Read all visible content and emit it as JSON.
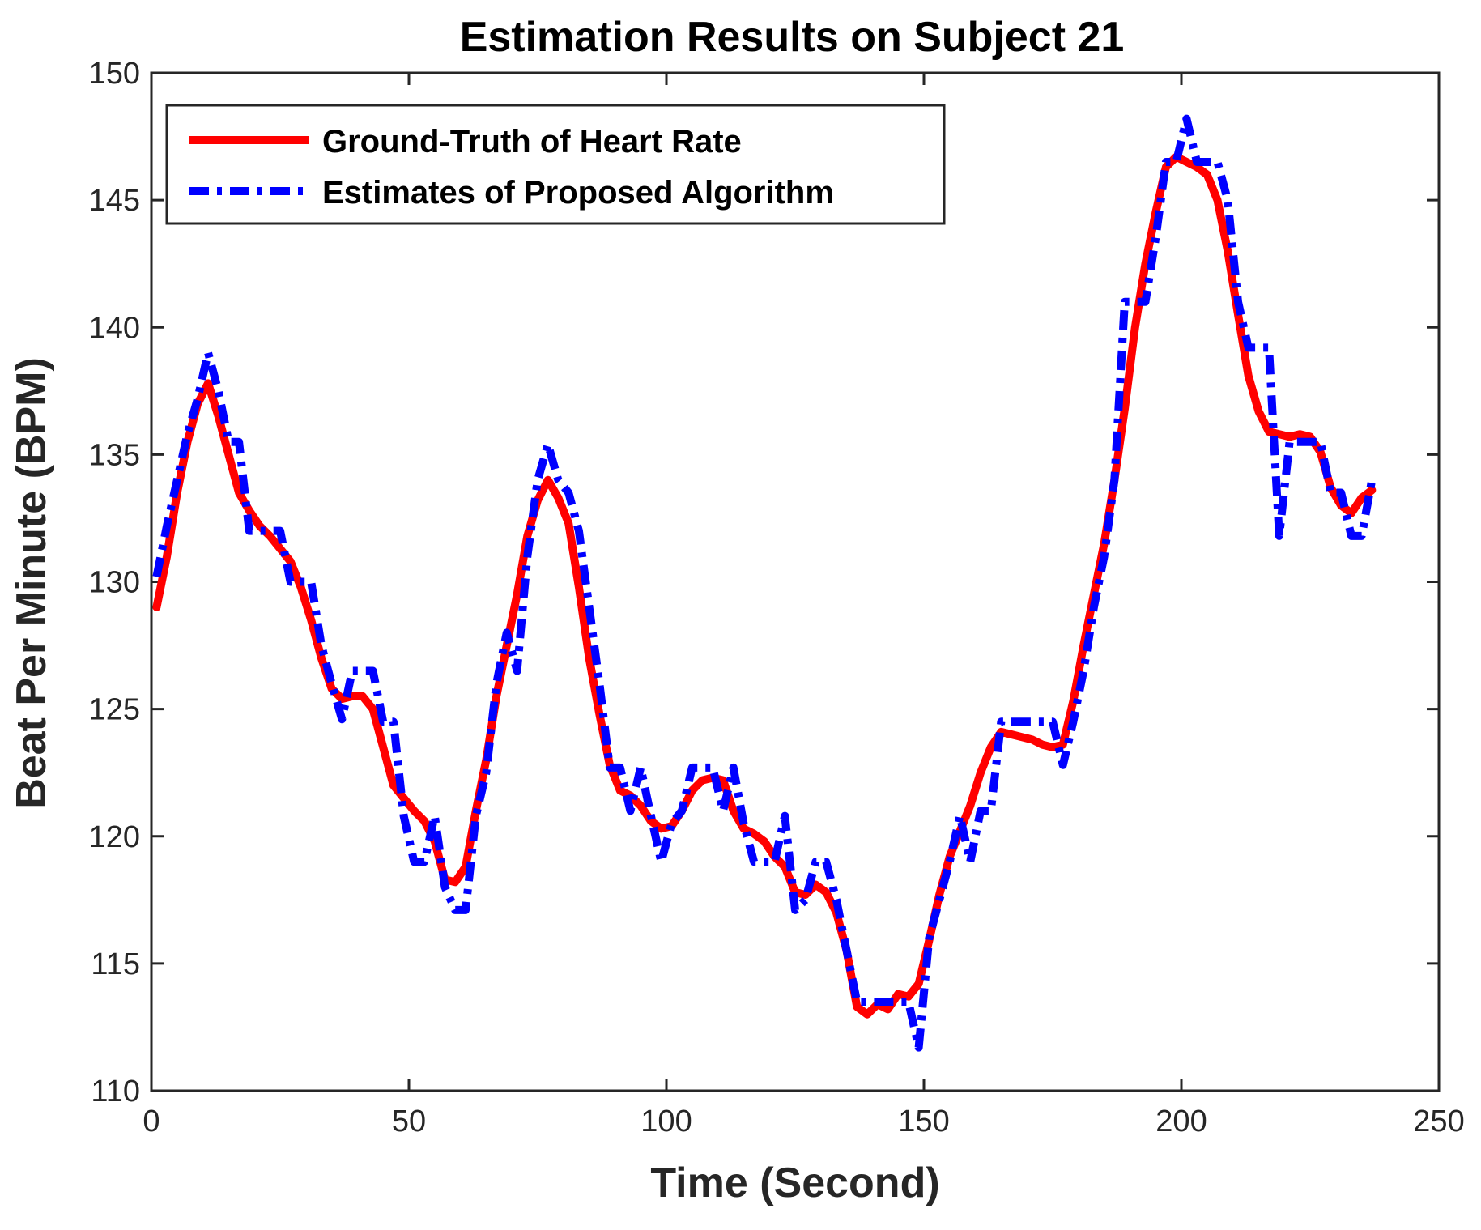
{
  "chart_data": {
    "type": "line",
    "title": "Estimation Results on Subject 21",
    "xlabel": "Time (Second)",
    "ylabel": "Beat Per Minute (BPM)",
    "xlim": [
      0,
      250
    ],
    "ylim": [
      110,
      150
    ],
    "xticks": [
      0,
      50,
      100,
      150,
      200,
      250
    ],
    "yticks": [
      110,
      115,
      120,
      125,
      130,
      135,
      140,
      145,
      150
    ],
    "grid": false,
    "legend_position": "top-left",
    "series": [
      {
        "name": "Ground-Truth of Heart Rate",
        "color": "#ff0000",
        "style": "solid",
        "x": [
          1,
          3,
          5,
          7,
          9,
          11,
          13,
          15,
          17,
          19,
          21,
          23,
          25,
          27,
          29,
          31,
          33,
          35,
          37,
          39,
          41,
          43,
          45,
          47,
          49,
          51,
          53,
          55,
          57,
          59,
          61,
          63,
          65,
          67,
          69,
          71,
          73,
          75,
          77,
          79,
          81,
          83,
          85,
          87,
          89,
          91,
          93,
          95,
          97,
          99,
          101,
          103,
          105,
          107,
          109,
          111,
          113,
          115,
          117,
          119,
          121,
          123,
          125,
          127,
          129,
          131,
          133,
          135,
          137,
          139,
          141,
          143,
          145,
          147,
          149,
          151,
          153,
          155,
          157,
          159,
          161,
          163,
          165,
          167,
          169,
          171,
          173,
          175,
          177,
          179,
          181,
          183,
          185,
          187,
          189,
          191,
          193,
          195,
          197,
          199,
          201,
          203,
          205,
          207,
          209,
          211,
          213,
          215,
          217,
          219,
          221,
          223,
          225,
          227,
          229,
          231,
          233,
          235,
          237
        ],
        "y": [
          129.0,
          131.0,
          133.5,
          135.5,
          137.0,
          137.8,
          136.5,
          135.0,
          133.5,
          132.8,
          132.2,
          131.8,
          131.3,
          130.8,
          129.8,
          128.5,
          127.0,
          125.8,
          125.4,
          125.5,
          125.5,
          125.0,
          123.5,
          122.0,
          121.5,
          121.0,
          120.6,
          119.8,
          118.3,
          118.2,
          118.8,
          121.0,
          123.0,
          125.5,
          127.5,
          129.5,
          131.8,
          133.2,
          134.0,
          133.3,
          132.3,
          129.8,
          127.0,
          124.8,
          122.8,
          121.8,
          121.6,
          121.2,
          120.6,
          120.3,
          120.4,
          121.0,
          121.8,
          122.2,
          122.3,
          122.2,
          121.0,
          120.3,
          120.1,
          119.8,
          119.2,
          118.8,
          117.8,
          117.7,
          118.1,
          117.8,
          117.0,
          115.5,
          113.3,
          113.0,
          113.4,
          113.2,
          113.8,
          113.7,
          114.2,
          115.9,
          117.7,
          119.2,
          120.2,
          121.2,
          122.5,
          123.5,
          124.1,
          124.0,
          123.9,
          123.8,
          123.6,
          123.5,
          123.6,
          125.3,
          127.5,
          129.5,
          131.5,
          134.0,
          136.8,
          140.0,
          142.5,
          144.5,
          146.3,
          146.7,
          146.5,
          146.3,
          146.0,
          145.0,
          143.0,
          140.5,
          138.1,
          136.7,
          135.9,
          135.8,
          135.7,
          135.8,
          135.7,
          135.1,
          133.7,
          133.0,
          132.7,
          133.3,
          133.6
        ]
      },
      {
        "name": "Estimates of Proposed Algorithm",
        "color": "#0000ff",
        "style": "dash-dot",
        "x": [
          1,
          3,
          5,
          7,
          9,
          11,
          13,
          15,
          17,
          19,
          21,
          23,
          25,
          27,
          29,
          31,
          33,
          35,
          37,
          39,
          41,
          43,
          45,
          47,
          49,
          51,
          53,
          55,
          57,
          59,
          61,
          63,
          65,
          67,
          69,
          71,
          73,
          75,
          77,
          79,
          81,
          83,
          85,
          87,
          89,
          91,
          93,
          95,
          97,
          99,
          101,
          103,
          105,
          107,
          109,
          111,
          113,
          115,
          117,
          119,
          121,
          123,
          125,
          127,
          129,
          131,
          133,
          135,
          137,
          139,
          141,
          143,
          145,
          147,
          149,
          151,
          153,
          155,
          157,
          159,
          161,
          163,
          165,
          167,
          169,
          171,
          173,
          175,
          177,
          179,
          181,
          183,
          185,
          187,
          189,
          191,
          193,
          195,
          197,
          199,
          201,
          203,
          205,
          207,
          209,
          211,
          213,
          215,
          217,
          219,
          221,
          223,
          225,
          227,
          229,
          231,
          233,
          235,
          237
        ],
        "y": [
          130.2,
          132.2,
          134.0,
          135.8,
          137.2,
          139.0,
          137.5,
          135.5,
          135.5,
          132.0,
          132.0,
          132.0,
          132.0,
          130.0,
          130.0,
          130.0,
          127.5,
          126.0,
          124.6,
          126.5,
          126.5,
          126.5,
          124.5,
          124.5,
          120.8,
          119.0,
          119.0,
          120.8,
          118.0,
          117.1,
          117.1,
          120.8,
          122.5,
          126.0,
          128.0,
          126.5,
          131.0,
          134.0,
          135.4,
          134.0,
          133.5,
          132.0,
          129.0,
          126.0,
          122.7,
          122.7,
          121.0,
          122.7,
          120.8,
          119.0,
          120.5,
          121.0,
          122.7,
          122.7,
          122.7,
          121.0,
          122.7,
          120.5,
          119.0,
          119.0,
          119.0,
          120.8,
          117.1,
          117.5,
          119.0,
          119.0,
          117.5,
          115.5,
          113.5,
          113.5,
          113.5,
          113.5,
          113.5,
          113.5,
          111.7,
          116.0,
          117.5,
          119.0,
          120.8,
          119.0,
          121.0,
          121.0,
          124.5,
          124.5,
          124.5,
          124.5,
          124.5,
          124.5,
          122.8,
          124.5,
          126.5,
          129.0,
          131.0,
          134.0,
          141.0,
          141.0,
          141.0,
          143.5,
          146.5,
          146.5,
          148.2,
          146.5,
          146.5,
          146.5,
          145.0,
          141.0,
          139.2,
          139.2,
          139.2,
          131.8,
          135.5,
          135.5,
          135.5,
          135.5,
          133.5,
          133.5,
          131.8,
          131.8,
          134.0
        ]
      }
    ]
  }
}
